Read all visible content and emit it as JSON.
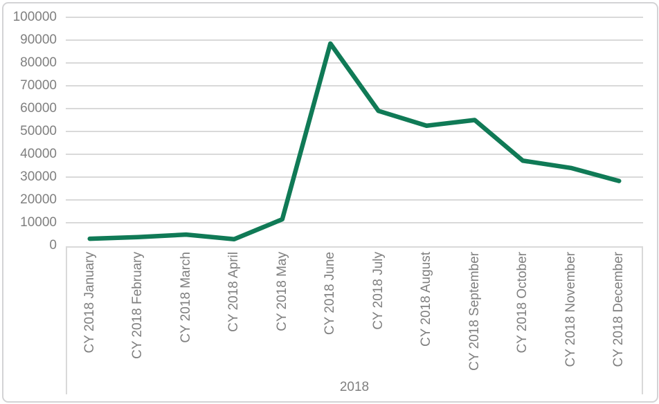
{
  "chart_data": {
    "type": "line",
    "categories": [
      "CY 2018 January",
      "CY 2018 February",
      "CY 2018 March",
      "CY 2018 April",
      "CY 2018 May",
      "CY 2018 June",
      "CY 2018 July",
      "CY 2018 August",
      "CY 2018 September",
      "CY 2018 October",
      "CY 2018 November",
      "CY 2018 December"
    ],
    "values": [
      3000,
      3700,
      4800,
      2800,
      11500,
      88500,
      59000,
      52500,
      55000,
      37200,
      34000,
      28300
    ],
    "title": "",
    "xlabel": "2018",
    "ylabel": "",
    "ylim": [
      0,
      100000
    ],
    "ytick_step": 10000,
    "y_tick_labels": [
      "0",
      "10000",
      "20000",
      "30000",
      "40000",
      "50000",
      "60000",
      "70000",
      "80000",
      "90000",
      "100000"
    ],
    "grid": true,
    "legend": "none",
    "line_color": "#107a56"
  },
  "styles": {
    "text_color": "#7f7f7f",
    "gridline_color": "#d9d9d9",
    "axis_box_border_color": "#d9d9d9",
    "outer_border_color": "#d3d3d5",
    "background_color": "#ffffff"
  }
}
